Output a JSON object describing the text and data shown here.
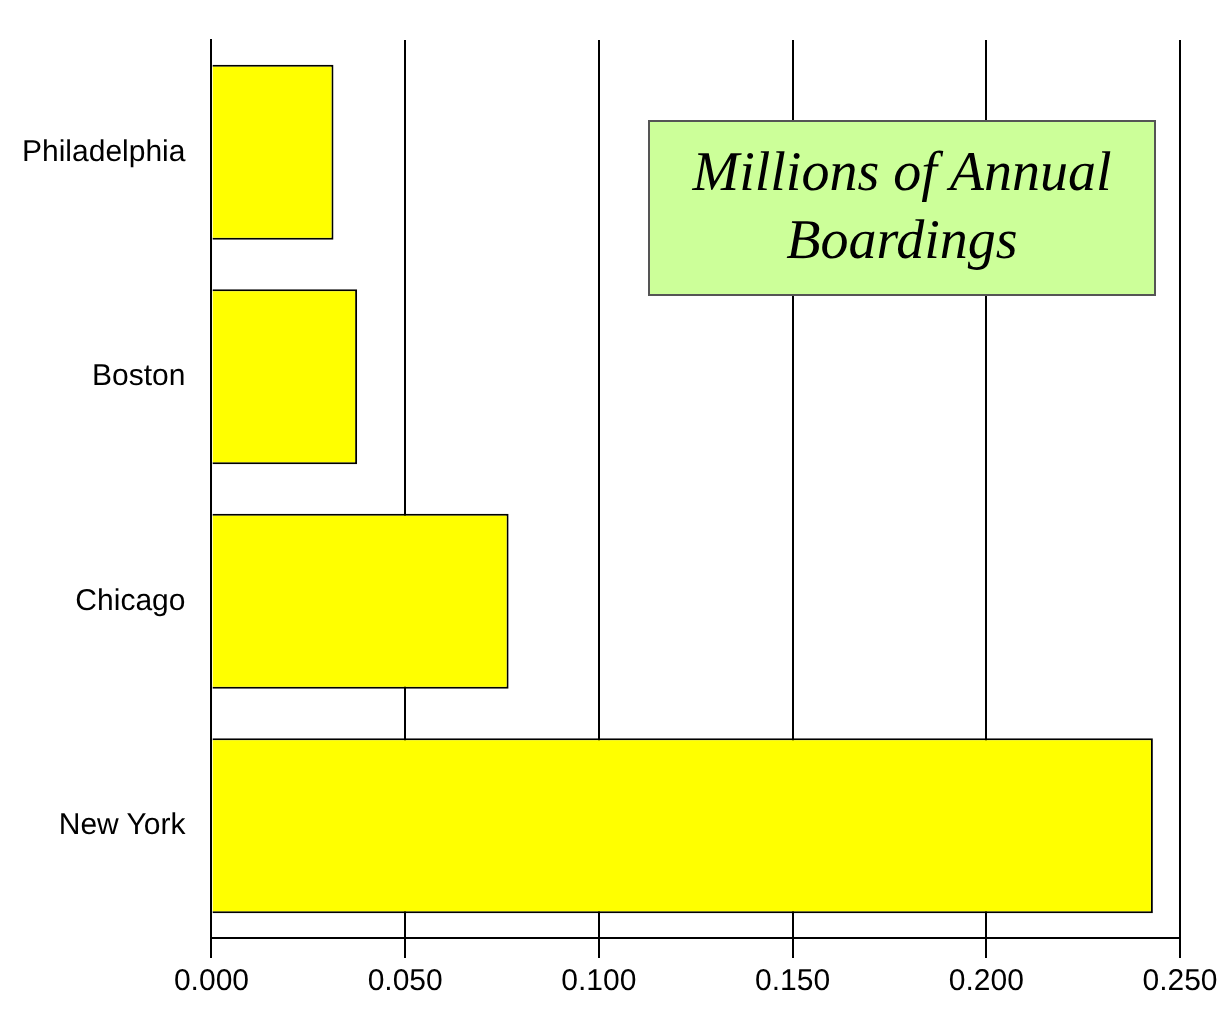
{
  "chart_data": {
    "type": "bar",
    "orientation": "horizontal",
    "title": "Millions of Annual Boardings",
    "categories": [
      "Philadelphia",
      "Boston",
      "Chicago",
      "New York"
    ],
    "values": [
      0.0315,
      0.0376,
      0.0767,
      0.243
    ],
    "color": "#ffff00",
    "xlim": [
      0,
      0.25
    ],
    "xticks": [
      {
        "value": 0,
        "label": "0.000"
      },
      {
        "value": 0.05,
        "label": "0.050"
      },
      {
        "value": 0.1,
        "label": "0.100"
      },
      {
        "value": 0.15,
        "label": "0.150"
      },
      {
        "value": 0.2,
        "label": "0.200"
      },
      {
        "value": 0.25,
        "label": "0.250"
      }
    ],
    "grid": "x",
    "legend": false
  }
}
